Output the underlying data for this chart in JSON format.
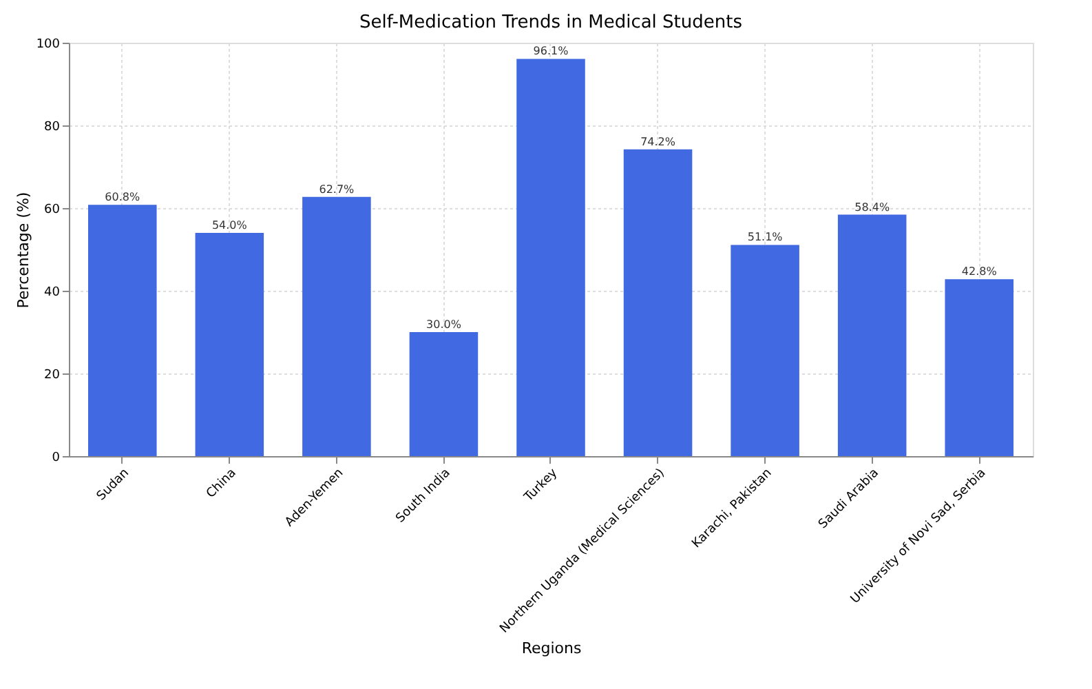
{
  "chart_data": {
    "type": "bar",
    "title": "Self-Medication Trends in Medical Students",
    "xlabel": "Regions",
    "ylabel": "Percentage (%)",
    "categories": [
      "Sudan",
      "China",
      "Aden-Yemen",
      "South India",
      "Turkey",
      "Northern Uganda (Medical Sciences)",
      "Karachi, Pakistan",
      "Saudi Arabia",
      "University of Novi Sad, Serbia"
    ],
    "values": [
      60.8,
      54.0,
      62.7,
      30.0,
      96.1,
      74.2,
      51.1,
      58.4,
      42.8
    ],
    "value_labels": [
      "60.8%",
      "54.0%",
      "62.7%",
      "30.0%",
      "96.1%",
      "74.2%",
      "51.1%",
      "58.4%",
      "42.8%"
    ],
    "color": "#4169e1",
    "ylim": [
      0,
      100
    ],
    "yticks": [
      0,
      20,
      40,
      60,
      80,
      100
    ],
    "grid": true
  }
}
